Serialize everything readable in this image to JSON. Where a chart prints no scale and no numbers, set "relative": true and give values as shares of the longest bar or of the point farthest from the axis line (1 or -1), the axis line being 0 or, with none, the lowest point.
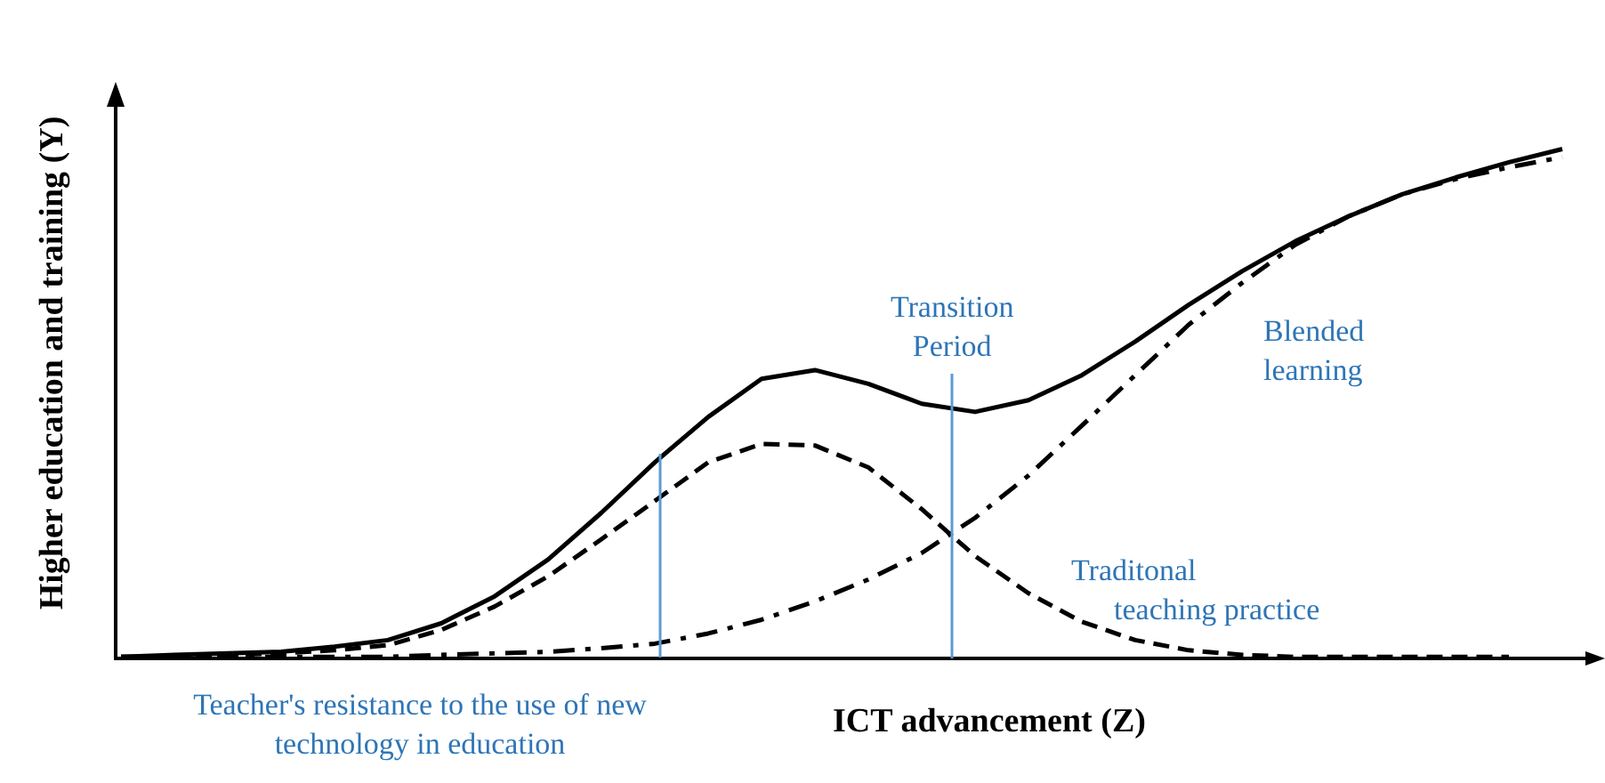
{
  "chart_data": {
    "type": "line",
    "relative": true,
    "xlabel": "ICT advancement (Z)",
    "ylabel": "Higher education and training (Y)",
    "categories": [
      null,
      null,
      null,
      null,
      null,
      null,
      null,
      null,
      null,
      null,
      null,
      null,
      null,
      null,
      null,
      null,
      null,
      null,
      null,
      null,
      null,
      null,
      null,
      null,
      null,
      null,
      null,
      null
    ],
    "marker": "none",
    "series": [
      {
        "color": "#000000",
        "line_style": "solid",
        "values": [
          0.003,
          0.007,
          0.01,
          0.013,
          0.023,
          0.036,
          0.069,
          0.122,
          0.194,
          0.286,
          0.385,
          0.474,
          0.549,
          0.566,
          0.539,
          0.5,
          0.484,
          0.507,
          0.556,
          0.622,
          0.694,
          0.76,
          0.819,
          0.868,
          0.911,
          0.944,
          0.974,
          1
        ]
      },
      {
        "name": "Traditonal teaching practice",
        "color": "#000000",
        "line_style": "dashed",
        "values": [
          0.003,
          0.003,
          0.007,
          0.01,
          0.016,
          0.026,
          0.056,
          0.102,
          0.161,
          0.234,
          0.309,
          0.385,
          0.421,
          0.418,
          0.375,
          0.293,
          0.201,
          0.128,
          0.072,
          0.036,
          0.016,
          0.007,
          0.003,
          0.003,
          0.003,
          0.003,
          0.003,
          null
        ]
      },
      {
        "name": "Blended learning",
        "color": "#000000",
        "line_style": "dashdot",
        "values": [
          0.003,
          0.003,
          0.003,
          0.003,
          0.003,
          0.003,
          0.007,
          0.01,
          0.013,
          0.02,
          0.029,
          0.049,
          0.076,
          0.112,
          0.155,
          0.207,
          0.276,
          0.359,
          0.457,
          0.556,
          0.655,
          0.737,
          0.812,
          0.868,
          0.911,
          0.941,
          0.964,
          0.984
        ]
      }
    ],
    "annotations": [
      "Teacher's resistance to the use of new technology in education",
      "Transition Period"
    ]
  }
}
